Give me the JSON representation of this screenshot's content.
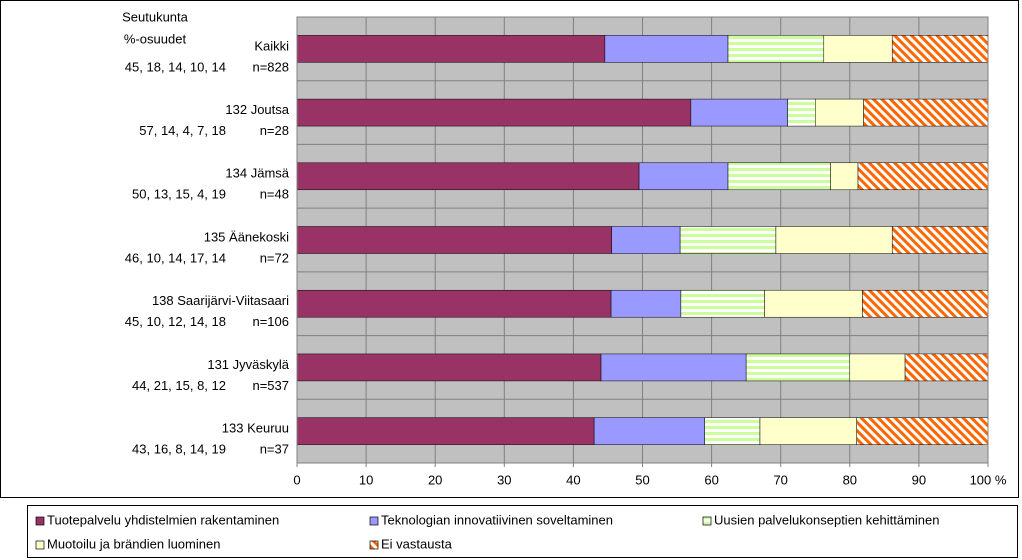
{
  "chart_data": {
    "type": "bar",
    "orientation": "horizontal",
    "stacked": "percent",
    "y_axis_title": [
      "Seutukunta",
      "%-osuudet"
    ],
    "categories": [
      "Kaikki",
      "132 Joutsa",
      "134 Jämsä",
      "135 Äänekoski",
      "138 Saarijärvi-Viitasaari",
      "131 Jyväskylä",
      "133 Keuruu"
    ],
    "row_value_texts": [
      "45, 18, 14, 10, 14",
      "57, 14, 4, 7, 18",
      "50, 13, 15, 4, 19",
      "46, 10, 14, 17, 14",
      "45, 10, 12, 14, 18",
      "44, 21, 15, 8, 12",
      "43, 16, 8, 14, 19"
    ],
    "n_labels": [
      "n=828",
      "n=28",
      "n=48",
      "n=72",
      "n=106",
      "n=537",
      "n=37"
    ],
    "series": [
      {
        "name": "Tuotepalvelu yhdistelmien rakentaminen",
        "color": "#993366",
        "values": [
          45,
          57,
          50,
          46,
          45,
          44,
          43
        ]
      },
      {
        "name": "Teknologian innovatiivinen soveltaminen",
        "color": "#9999ff",
        "values": [
          18,
          14,
          13,
          10,
          10,
          21,
          16
        ]
      },
      {
        "name": "Uusien palvelukonseptien kehittäminen",
        "color": "#ccff99",
        "hatch": "horizontal",
        "values": [
          14,
          4,
          15,
          14,
          12,
          15,
          8
        ]
      },
      {
        "name": "Muotoilu ja brändien luominen",
        "color": "#ffffcc",
        "values": [
          10,
          7,
          4,
          17,
          14,
          8,
          14
        ]
      },
      {
        "name": "Ei vastausta",
        "color": "#ff6600",
        "hatch": "diagonal",
        "values": [
          14,
          18,
          19,
          14,
          18,
          12,
          19
        ]
      }
    ],
    "xlim": [
      0,
      100
    ],
    "xticks": [
      0,
      10,
      20,
      30,
      40,
      50,
      60,
      70,
      80,
      90,
      {
        "value": 100,
        "label": "100 %"
      }
    ],
    "grid": true,
    "plot_background": "#c0c0c0",
    "legend": "bottom"
  }
}
